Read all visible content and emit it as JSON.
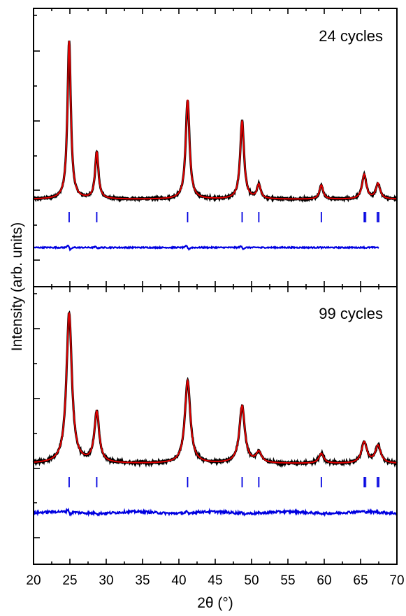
{
  "chart_data": {
    "type": "line",
    "xlabel": "2θ (°)",
    "ylabel": "Intensity (arb. units)",
    "xlim": [
      20,
      70
    ],
    "x_ticks": [
      "20",
      "25",
      "30",
      "35",
      "40",
      "45",
      "50",
      "55",
      "60",
      "65",
      "70"
    ],
    "grid": false,
    "panels": [
      {
        "label": "24 cycles",
        "peaks": [
          {
            "pos": 24.9,
            "height": 226,
            "width": 0.28
          },
          {
            "pos": 28.7,
            "height": 67,
            "width": 0.28
          },
          {
            "pos": 41.2,
            "height": 142,
            "width": 0.32
          },
          {
            "pos": 48.7,
            "height": 112,
            "width": 0.32
          },
          {
            "pos": 51.0,
            "height": 20,
            "width": 0.3
          },
          {
            "pos": 59.6,
            "height": 20,
            "width": 0.3
          },
          {
            "pos": 65.5,
            "height": 35,
            "width": 0.35
          },
          {
            "pos": 67.4,
            "height": 22,
            "width": 0.35
          }
        ],
        "background": 0,
        "reflection_ticks": [
          24.9,
          28.7,
          41.2,
          48.7,
          51.0,
          59.6,
          65.5,
          65.7,
          67.3,
          67.5
        ],
        "difference_range": [
          20,
          67.5
        ],
        "series": [
          {
            "name": "observed",
            "color": "#000000"
          },
          {
            "name": "calculated",
            "color": "#e00000"
          },
          {
            "name": "difference",
            "color": "#0000e0"
          }
        ]
      },
      {
        "label": "99 cycles",
        "peaks": [
          {
            "pos": 24.9,
            "height": 215,
            "width": 0.45
          },
          {
            "pos": 28.7,
            "height": 72,
            "width": 0.4
          },
          {
            "pos": 41.2,
            "height": 118,
            "width": 0.45
          },
          {
            "pos": 48.7,
            "height": 82,
            "width": 0.45
          },
          {
            "pos": 51.0,
            "height": 15,
            "width": 0.45
          },
          {
            "pos": 59.6,
            "height": 14,
            "width": 0.4
          },
          {
            "pos": 65.5,
            "height": 30,
            "width": 0.45
          },
          {
            "pos": 67.4,
            "height": 25,
            "width": 0.45
          }
        ],
        "background": 0,
        "reflection_ticks": [
          24.9,
          28.7,
          41.2,
          48.7,
          51.0,
          59.6,
          65.5,
          65.7,
          67.3,
          67.5
        ],
        "difference_range": [
          20,
          70
        ],
        "series": [
          {
            "name": "observed",
            "color": "#000000"
          },
          {
            "name": "calculated",
            "color": "#e00000"
          },
          {
            "name": "difference",
            "color": "#0000e0"
          }
        ]
      }
    ]
  }
}
